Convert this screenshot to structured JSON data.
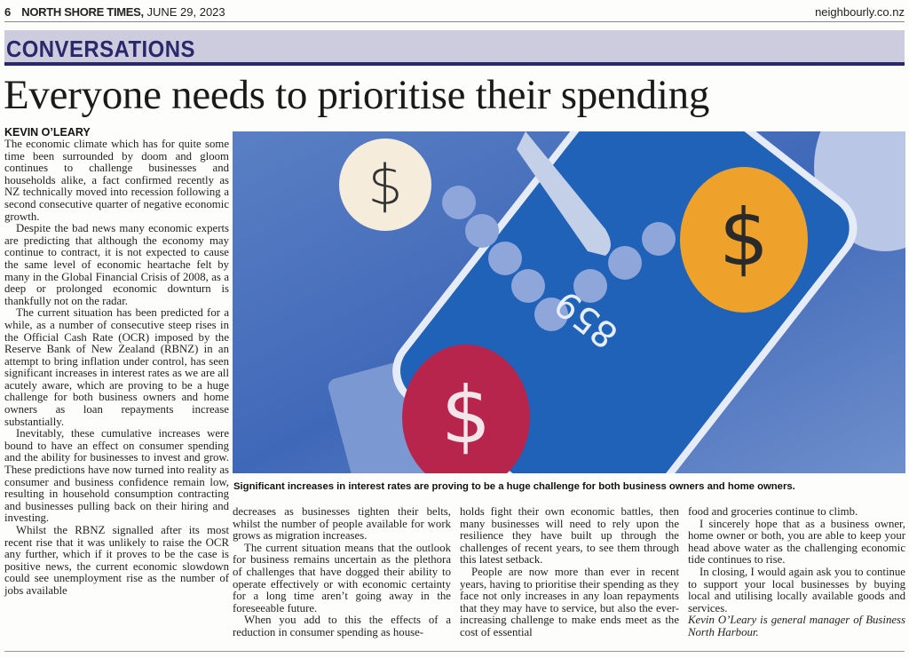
{
  "header": {
    "page_number": "6",
    "publication": "NORTH SHORE TIMES,",
    "date": "JUNE 29, 2023",
    "website": "neighbourly.co.nz"
  },
  "section": "CONVERSATIONS",
  "article": {
    "headline": "Everyone needs to prioritise their spending",
    "byline": "KEVIN O’LEARY",
    "columns": [
      [
        "The economic climate which has for quite some time been surrounded by doom and gloom continues to challenge businesses and households alike, a fact confirmed recently as NZ technically moved into recession following a second consecutive quarter of negative economic growth.",
        "Despite the bad news many economic experts are predicting that although the economy may continue to contract, it is not expected to cause the same level of economic heartache felt by many in the Global Financial Crisis of 2008, as a deep or prolonged economic downturn is thankfully not on the radar.",
        "The current situation has been predicted for a while, as a number of consecutive steep rises in the Official Cash Rate (OCR) imposed by the Reserve Bank of New Zealand (RBNZ) in an attempt to bring inflation under control, has seen significant increases in interest rates as we are all acutely aware, which are proving to be a huge challenge for both business owners and home owners as loan repayments increase substantially.",
        "Inevitably, these cumulative increases were bound to have an effect on consumer spending and the ability for businesses to invest and grow. These predictions have now turned into reality as consumer and business confidence remain low, resulting in household consumption contracting and businesses pulling back on their hiring and investing.",
        "Whilst the RBNZ signalled after its most recent rise that it was unlikely to raise the OCR any further, which if it proves to be the case is positive news, the current economic slowdown could see unemployment rise as the number of jobs available"
      ],
      [
        "decreases as businesses tighten their belts, whilst the number of people available for work grows as migration increases.",
        "The current situation means that the outlook for business remains uncertain as the plethora of challenges that have dogged their ability to operate effectively or with economic certainty for a long time aren’t going away in the foreseeable future.",
        "When you add to this the effects of a reduction in consumer spending as house-"
      ],
      [
        "holds fight their own economic battles, then many businesses will need to rely upon the resilience they have built up through the challenges of recent years, to see them through this latest setback.",
        "People are now more than ever in recent years, having to prioritise their spending as they face not only increases in any loan repayments that they may have to service, but also the ever-increasing challenge to make ends meet as the cost of essential"
      ],
      [
        "food and groceries continue to climb.",
        "I sincerely hope that as a business owner, home owner or both, you are able to keep your head above water as the challenging economic tide continues to rise.",
        "In closing, I would again ask you to continue to support your local businesses by buying local and utilising locally available goods and services."
      ]
    ],
    "bio": "Kevin O’Leary is general manager of Business North Harbour.",
    "caption": "Significant increases in interest rates are proving to be a huge challenge for both business owners and home owners.",
    "photo": {
      "display": "859",
      "coin_symbol": "$",
      "colors": {
        "background": "#3f68b8",
        "phone": "#1f62b8",
        "coin_cream": "#f6ecdc",
        "coin_orange": "#eea22c",
        "coin_red": "#b8254c"
      }
    }
  },
  "colors": {
    "section_band": "#cdcbde",
    "section_text": "#28286a"
  }
}
